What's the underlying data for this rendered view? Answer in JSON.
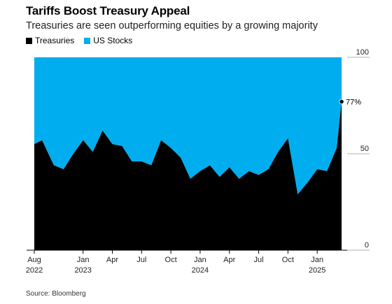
{
  "header": {
    "title": "Tariffs Boost Treasury Appeal",
    "subtitle": "Treasuries are seen outperforming equities by a growing majority",
    "source": "Source: Bloomberg"
  },
  "legend": [
    {
      "label": "Treasuries",
      "color": "#000000"
    },
    {
      "label": "US Stocks",
      "color": "#00aeef"
    }
  ],
  "chart_data": {
    "type": "area",
    "stacked": true,
    "title": "Tariffs Boost Treasury Appeal",
    "subtitle": "Treasuries are seen outperforming equities by a growing majority",
    "xlabel": "",
    "ylabel": "",
    "ylim": [
      0,
      100
    ],
    "y_ticks": [
      0,
      50,
      100
    ],
    "x_ticks": [
      {
        "label": "Aug",
        "sub": "2022",
        "x": 0
      },
      {
        "label": "Jan",
        "sub": "2023",
        "x": 5
      },
      {
        "label": "Apr",
        "sub": "",
        "x": 8
      },
      {
        "label": "Jul",
        "sub": "",
        "x": 11
      },
      {
        "label": "Oct",
        "sub": "",
        "x": 14
      },
      {
        "label": "Jan",
        "sub": "2024",
        "x": 17
      },
      {
        "label": "Apr",
        "sub": "",
        "x": 20
      },
      {
        "label": "Jul",
        "sub": "",
        "x": 23
      },
      {
        "label": "Oct",
        "sub": "",
        "x": 26
      },
      {
        "label": "Jan",
        "sub": "2025",
        "x": 29
      }
    ],
    "x": [
      0,
      0.8,
      2,
      3,
      4,
      5,
      6,
      7,
      8,
      9,
      10,
      11,
      12,
      13,
      14,
      15,
      16,
      17,
      18,
      19,
      20,
      21,
      22,
      23,
      24,
      25,
      26,
      27,
      28,
      29,
      30,
      31,
      31.5
    ],
    "series": [
      {
        "name": "Treasuries",
        "color": "#000000",
        "values": [
          55,
          57,
          44,
          42,
          50,
          57,
          51,
          62,
          55,
          54,
          46,
          46,
          44,
          57,
          53,
          48,
          37,
          41,
          44,
          38,
          43,
          37,
          41,
          39,
          42,
          51,
          58,
          29,
          35,
          42,
          41,
          53,
          77
        ]
      },
      {
        "name": "US Stocks",
        "color": "#00aeef",
        "values": [
          45,
          43,
          56,
          58,
          50,
          43,
          49,
          38,
          45,
          46,
          54,
          54,
          56,
          43,
          47,
          52,
          63,
          59,
          56,
          62,
          57,
          63,
          59,
          61,
          58,
          49,
          42,
          71,
          65,
          58,
          59,
          47,
          23
        ]
      }
    ],
    "annotation": {
      "x": 31.5,
      "y": 77,
      "label": "77%"
    }
  }
}
